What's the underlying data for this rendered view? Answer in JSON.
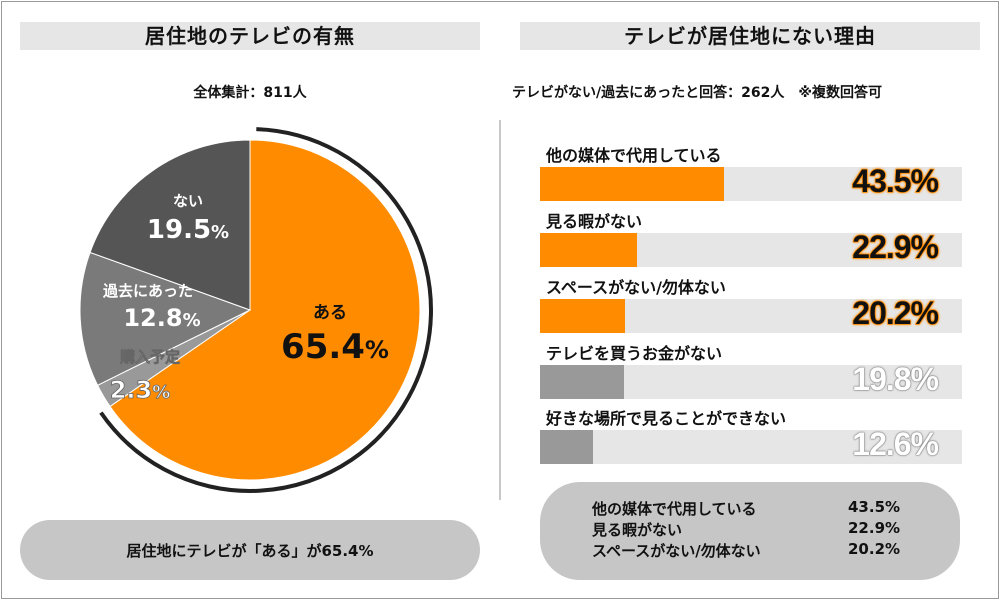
{
  "left": {
    "title": "居住地のテレビの有無",
    "sample": "全体集計：811人",
    "summary": "居住地にテレビが「ある」が65.4%"
  },
  "right": {
    "title": "テレビが居住地にない理由",
    "sample": "テレビがない/過去にあったと回答：262人　※複数回答可",
    "summary": [
      {
        "label": "他の媒体で代用している",
        "value": "43.5%"
      },
      {
        "label": "見る暇がない",
        "value": "22.9%"
      },
      {
        "label": "スペースがない/勿体ない",
        "value": "20.2%"
      }
    ]
  },
  "colors": {
    "orange": "#ff8c00",
    "dark": "#555555",
    "mid": "#7a7a7a",
    "light": "#999999",
    "track": "#e6e6e6",
    "grey_bar": "#999999"
  },
  "chart_data": [
    {
      "type": "pie",
      "title": "居住地のテレビの有無",
      "slices": [
        {
          "label": "ある",
          "value": 65.4,
          "display": "65.4%",
          "num": "65.4"
        },
        {
          "label": "購入予定",
          "value": 2.3,
          "display": "2.3%",
          "num": "2.3"
        },
        {
          "label": "過去にあった",
          "value": 12.8,
          "display": "12.8%",
          "num": "12.8"
        },
        {
          "label": "ない",
          "value": 19.5,
          "display": "19.5%",
          "num": "19.5"
        }
      ]
    },
    {
      "type": "bar",
      "orientation": "horizontal",
      "title": "テレビが居住地にない理由",
      "xlim": [
        0,
        100
      ],
      "categories": [
        "他の媒体で代用している",
        "見る暇がない",
        "スペースがない/勿体ない",
        "テレビを買うお金がない",
        "好きな場所で見ることができない"
      ],
      "values": [
        43.5,
        22.9,
        20.2,
        19.8,
        12.6
      ],
      "labels": [
        "43.5%",
        "22.9%",
        "20.2%",
        "19.8%",
        "12.6%"
      ],
      "highlighted": [
        true,
        true,
        true,
        false,
        false
      ]
    }
  ]
}
